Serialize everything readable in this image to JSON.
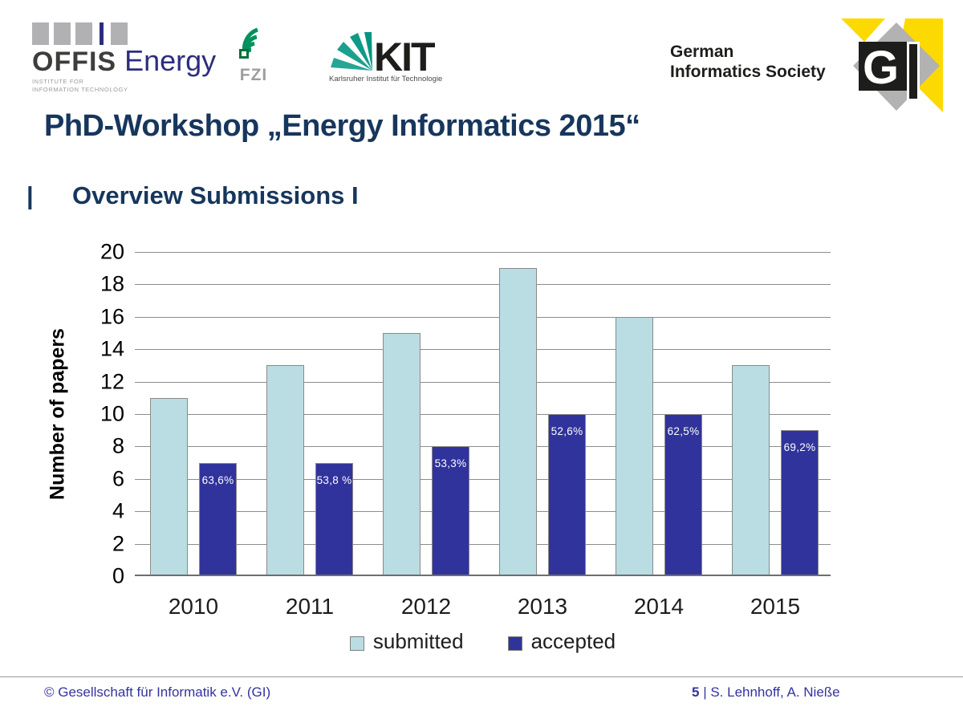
{
  "header": {
    "offis": {
      "name": "OFFIS",
      "suffix": "Energy",
      "tagline_line1": "INSTITUTE FOR",
      "tagline_line2": "INFORMATION TECHNOLOGY"
    },
    "fzi": {
      "label": "FZI"
    },
    "kit": {
      "label": "KIT",
      "tagline": "Karlsruher Institut für Technologie"
    },
    "society": {
      "line1": "German",
      "line2": "Informatics Society"
    },
    "gi_logo": {
      "letter_g": "G",
      "colors": {
        "yellow": "#fcd900",
        "gray": "#b2b2b2",
        "black": "#1d1d1b"
      }
    }
  },
  "title": "PhD-Workshop „Energy Informatics 2015“",
  "subtitle": {
    "prefix": "|",
    "text": "Overview Submissions I"
  },
  "chart_data": {
    "type": "bar",
    "categories": [
      "2010",
      "2011",
      "2012",
      "2013",
      "2014",
      "2015"
    ],
    "series": [
      {
        "name": "submitted",
        "color": "#b9dde2",
        "values": [
          11,
          13,
          15,
          19,
          16,
          13
        ]
      },
      {
        "name": "accepted",
        "color": "#31339c",
        "values": [
          7,
          7,
          8,
          10,
          10,
          9
        ],
        "labels": [
          "63,6%",
          "53,8 %",
          "53,3%",
          "52,6%",
          "62,5%",
          "69,2%"
        ]
      }
    ],
    "title": "",
    "xlabel": "",
    "ylabel": "Number of papers",
    "ylim": [
      0,
      20
    ],
    "ytick_step": 2,
    "grid": true,
    "legend_position": "bottom"
  },
  "footer": {
    "left": "© Gesellschaft für Informatik e.V. (GI)",
    "page": "5",
    "right_rest": " | S. Lehnhoff, A. Nieße"
  }
}
